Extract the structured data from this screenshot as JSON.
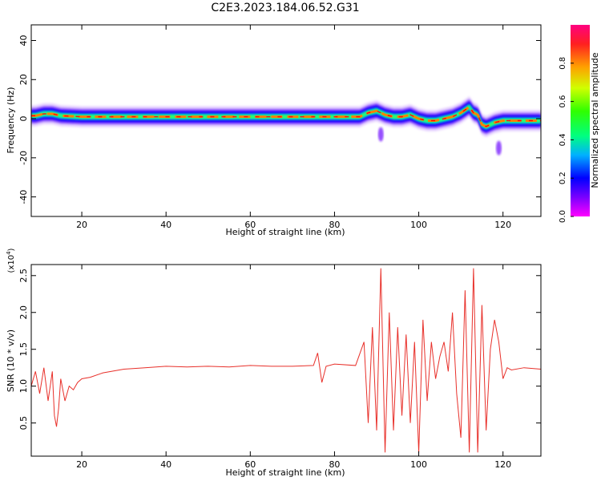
{
  "title": "C2E3.2023.184.06.52.G31",
  "chart_data": [
    {
      "type": "heatmap",
      "xlabel": "Height of straight line (km)",
      "ylabel": "Frequency (Hz)",
      "xlim": [
        8,
        129
      ],
      "ylim": [
        -50,
        48
      ],
      "xticks": [
        20,
        40,
        60,
        80,
        100,
        120
      ],
      "yticks": [
        40,
        20,
        0,
        -20,
        -40
      ],
      "colorbar": {
        "label": "Normalized spectral amplitude",
        "range": [
          0,
          1
        ],
        "ticks": [
          "0.0",
          "0.2",
          "0.4",
          "0.6",
          "0.8"
        ],
        "tick_values": [
          0,
          0.2,
          0.4,
          0.6,
          0.8
        ],
        "colormap": "gist_rainbow"
      },
      "ridge": {
        "description": "dominant frequency track near 0 Hz",
        "x": [
          9,
          11,
          13,
          15,
          20,
          30,
          40,
          50,
          60,
          70,
          77,
          80,
          86,
          88,
          90,
          92,
          94,
          96,
          98,
          100,
          102,
          104,
          106,
          108,
          110,
          112,
          113,
          114,
          115,
          116,
          118,
          120,
          125,
          129
        ],
        "y": [
          1.5,
          2.5,
          2.5,
          1.5,
          1,
          1,
          1,
          1,
          1,
          1,
          1,
          1,
          1,
          3,
          4,
          2,
          1,
          1,
          2,
          0,
          -1,
          -1,
          0,
          1,
          3,
          6,
          3,
          2,
          -3,
          -4,
          -2,
          -1,
          -1,
          -1
        ]
      },
      "features": [
        {
          "x": 91,
          "y": -8
        },
        {
          "x": 119,
          "y": -15
        }
      ]
    },
    {
      "type": "line",
      "xlabel": "Height of straight line (km)",
      "ylabel": "SNR (10 * v/v)",
      "y_multiplier": "(x10",
      "y_multiplier_exp": "4",
      "y_multiplier_close": ")",
      "xlim": [
        8,
        129
      ],
      "ylim": [
        0.05,
        2.65
      ],
      "xticks": [
        20,
        40,
        60,
        80,
        100,
        120
      ],
      "yticks": [
        "0.5",
        "1.0",
        "1.5",
        "2.0",
        "2.5"
      ],
      "ytick_values": [
        0.5,
        1.0,
        1.5,
        2.0,
        2.5
      ],
      "series": [
        {
          "color": "#e8302a",
          "x": [
            8,
            9,
            10,
            11,
            12,
            13,
            13.5,
            14,
            14.5,
            15,
            16,
            17,
            18,
            19,
            20,
            22,
            25,
            30,
            35,
            40,
            45,
            50,
            55,
            60,
            65,
            70,
            75,
            76,
            77,
            78,
            80,
            85,
            87,
            88,
            89,
            90,
            91,
            92,
            93,
            94,
            95,
            96,
            97,
            98,
            99,
            100,
            101,
            102,
            103,
            104,
            105,
            106,
            107,
            108,
            109,
            110,
            111,
            112,
            113,
            114,
            115,
            116,
            117,
            118,
            119,
            120,
            121,
            122,
            125,
            129
          ],
          "y": [
            1.0,
            1.2,
            0.9,
            1.25,
            0.8,
            1.2,
            0.6,
            0.45,
            0.7,
            1.1,
            0.8,
            1.0,
            0.95,
            1.05,
            1.1,
            1.12,
            1.18,
            1.23,
            1.25,
            1.27,
            1.26,
            1.27,
            1.26,
            1.28,
            1.27,
            1.27,
            1.28,
            1.45,
            1.05,
            1.27,
            1.3,
            1.28,
            1.6,
            0.5,
            1.8,
            0.4,
            2.6,
            0.1,
            2.0,
            0.4,
            1.8,
            0.6,
            1.7,
            0.5,
            1.6,
            0.1,
            1.9,
            0.8,
            1.6,
            1.1,
            1.4,
            1.6,
            1.2,
            2.0,
            0.9,
            0.3,
            2.3,
            0.1,
            2.6,
            0.1,
            2.1,
            0.4,
            1.5,
            1.9,
            1.6,
            1.1,
            1.25,
            1.22,
            1.25,
            1.23
          ]
        }
      ]
    }
  ]
}
